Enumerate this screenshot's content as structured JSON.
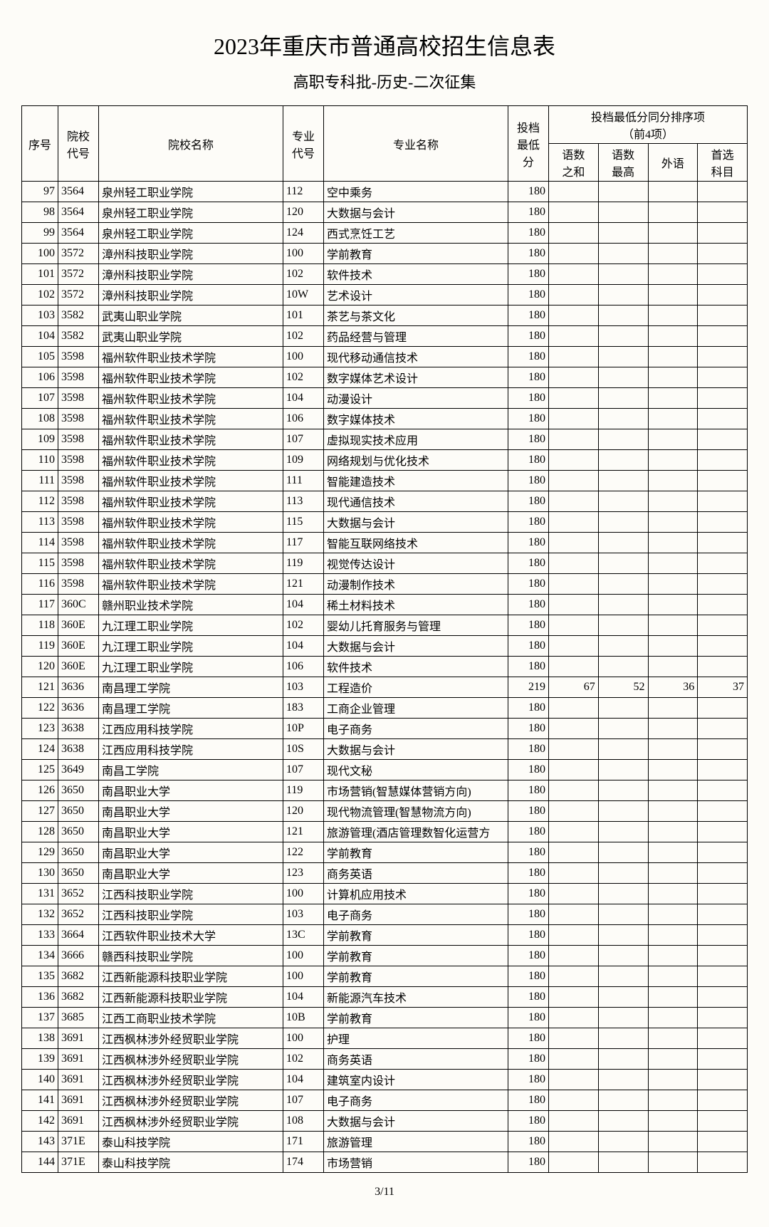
{
  "title": "2023年重庆市普通高校招生信息表",
  "subtitle": "高职专科批-历史-二次征集",
  "pagenum": "3/11",
  "headers": {
    "seq": "序号",
    "school_code": "院校\n代号",
    "school_name": "院校名称",
    "major_code": "专业\n代号",
    "major_name": "专业名称",
    "min_score": "投档\n最低\n分",
    "tiebreak_group": "投档最低分同分排序项\n（前4项）",
    "tb1": "语数\n之和",
    "tb2": "语数\n最高",
    "tb3": "外语",
    "tb4": "首选\n科目"
  },
  "columns_width": {
    "seq": 42,
    "school_code": 48,
    "school": 250,
    "major_code": 48,
    "major": 250,
    "score": 48,
    "sub": 48
  },
  "rows": [
    {
      "seq": 97,
      "sc": "3564",
      "sn": "泉州轻工职业学院",
      "mc": "112",
      "mn": "空中乘务",
      "min": 180,
      "t1": "",
      "t2": "",
      "t3": "",
      "t4": ""
    },
    {
      "seq": 98,
      "sc": "3564",
      "sn": "泉州轻工职业学院",
      "mc": "120",
      "mn": "大数据与会计",
      "min": 180,
      "t1": "",
      "t2": "",
      "t3": "",
      "t4": ""
    },
    {
      "seq": 99,
      "sc": "3564",
      "sn": "泉州轻工职业学院",
      "mc": "124",
      "mn": "西式烹饪工艺",
      "min": 180,
      "t1": "",
      "t2": "",
      "t3": "",
      "t4": ""
    },
    {
      "seq": 100,
      "sc": "3572",
      "sn": "漳州科技职业学院",
      "mc": "100",
      "mn": "学前教育",
      "min": 180,
      "t1": "",
      "t2": "",
      "t3": "",
      "t4": ""
    },
    {
      "seq": 101,
      "sc": "3572",
      "sn": "漳州科技职业学院",
      "mc": "102",
      "mn": "软件技术",
      "min": 180,
      "t1": "",
      "t2": "",
      "t3": "",
      "t4": ""
    },
    {
      "seq": 102,
      "sc": "3572",
      "sn": "漳州科技职业学院",
      "mc": "10W",
      "mn": "艺术设计",
      "min": 180,
      "t1": "",
      "t2": "",
      "t3": "",
      "t4": ""
    },
    {
      "seq": 103,
      "sc": "3582",
      "sn": "武夷山职业学院",
      "mc": "101",
      "mn": "茶艺与茶文化",
      "min": 180,
      "t1": "",
      "t2": "",
      "t3": "",
      "t4": ""
    },
    {
      "seq": 104,
      "sc": "3582",
      "sn": "武夷山职业学院",
      "mc": "102",
      "mn": "药品经营与管理",
      "min": 180,
      "t1": "",
      "t2": "",
      "t3": "",
      "t4": ""
    },
    {
      "seq": 105,
      "sc": "3598",
      "sn": "福州软件职业技术学院",
      "mc": "100",
      "mn": "现代移动通信技术",
      "min": 180,
      "t1": "",
      "t2": "",
      "t3": "",
      "t4": ""
    },
    {
      "seq": 106,
      "sc": "3598",
      "sn": "福州软件职业技术学院",
      "mc": "102",
      "mn": "数字媒体艺术设计",
      "min": 180,
      "t1": "",
      "t2": "",
      "t3": "",
      "t4": ""
    },
    {
      "seq": 107,
      "sc": "3598",
      "sn": "福州软件职业技术学院",
      "mc": "104",
      "mn": "动漫设计",
      "min": 180,
      "t1": "",
      "t2": "",
      "t3": "",
      "t4": ""
    },
    {
      "seq": 108,
      "sc": "3598",
      "sn": "福州软件职业技术学院",
      "mc": "106",
      "mn": "数字媒体技术",
      "min": 180,
      "t1": "",
      "t2": "",
      "t3": "",
      "t4": ""
    },
    {
      "seq": 109,
      "sc": "3598",
      "sn": "福州软件职业技术学院",
      "mc": "107",
      "mn": "虚拟现实技术应用",
      "min": 180,
      "t1": "",
      "t2": "",
      "t3": "",
      "t4": ""
    },
    {
      "seq": 110,
      "sc": "3598",
      "sn": "福州软件职业技术学院",
      "mc": "109",
      "mn": "网络规划与优化技术",
      "min": 180,
      "t1": "",
      "t2": "",
      "t3": "",
      "t4": ""
    },
    {
      "seq": 111,
      "sc": "3598",
      "sn": "福州软件职业技术学院",
      "mc": "111",
      "mn": "智能建造技术",
      "min": 180,
      "t1": "",
      "t2": "",
      "t3": "",
      "t4": ""
    },
    {
      "seq": 112,
      "sc": "3598",
      "sn": "福州软件职业技术学院",
      "mc": "113",
      "mn": "现代通信技术",
      "min": 180,
      "t1": "",
      "t2": "",
      "t3": "",
      "t4": ""
    },
    {
      "seq": 113,
      "sc": "3598",
      "sn": "福州软件职业技术学院",
      "mc": "115",
      "mn": "大数据与会计",
      "min": 180,
      "t1": "",
      "t2": "",
      "t3": "",
      "t4": ""
    },
    {
      "seq": 114,
      "sc": "3598",
      "sn": "福州软件职业技术学院",
      "mc": "117",
      "mn": "智能互联网络技术",
      "min": 180,
      "t1": "",
      "t2": "",
      "t3": "",
      "t4": ""
    },
    {
      "seq": 115,
      "sc": "3598",
      "sn": "福州软件职业技术学院",
      "mc": "119",
      "mn": "视觉传达设计",
      "min": 180,
      "t1": "",
      "t2": "",
      "t3": "",
      "t4": ""
    },
    {
      "seq": 116,
      "sc": "3598",
      "sn": "福州软件职业技术学院",
      "mc": "121",
      "mn": "动漫制作技术",
      "min": 180,
      "t1": "",
      "t2": "",
      "t3": "",
      "t4": ""
    },
    {
      "seq": 117,
      "sc": "360C",
      "sn": "赣州职业技术学院",
      "mc": "104",
      "mn": "稀土材料技术",
      "min": 180,
      "t1": "",
      "t2": "",
      "t3": "",
      "t4": ""
    },
    {
      "seq": 118,
      "sc": "360E",
      "sn": "九江理工职业学院",
      "mc": "102",
      "mn": "婴幼儿托育服务与管理",
      "min": 180,
      "t1": "",
      "t2": "",
      "t3": "",
      "t4": ""
    },
    {
      "seq": 119,
      "sc": "360E",
      "sn": "九江理工职业学院",
      "mc": "104",
      "mn": "大数据与会计",
      "min": 180,
      "t1": "",
      "t2": "",
      "t3": "",
      "t4": ""
    },
    {
      "seq": 120,
      "sc": "360E",
      "sn": "九江理工职业学院",
      "mc": "106",
      "mn": "软件技术",
      "min": 180,
      "t1": "",
      "t2": "",
      "t3": "",
      "t4": ""
    },
    {
      "seq": 121,
      "sc": "3636",
      "sn": "南昌理工学院",
      "mc": "103",
      "mn": "工程造价",
      "min": 219,
      "t1": "67",
      "t2": "52",
      "t3": "36",
      "t4": "37"
    },
    {
      "seq": 122,
      "sc": "3636",
      "sn": "南昌理工学院",
      "mc": "183",
      "mn": "工商企业管理",
      "min": 180,
      "t1": "",
      "t2": "",
      "t3": "",
      "t4": ""
    },
    {
      "seq": 123,
      "sc": "3638",
      "sn": "江西应用科技学院",
      "mc": "10P",
      "mn": "电子商务",
      "min": 180,
      "t1": "",
      "t2": "",
      "t3": "",
      "t4": ""
    },
    {
      "seq": 124,
      "sc": "3638",
      "sn": "江西应用科技学院",
      "mc": "10S",
      "mn": "大数据与会计",
      "min": 180,
      "t1": "",
      "t2": "",
      "t3": "",
      "t4": ""
    },
    {
      "seq": 125,
      "sc": "3649",
      "sn": "南昌工学院",
      "mc": "107",
      "mn": "现代文秘",
      "min": 180,
      "t1": "",
      "t2": "",
      "t3": "",
      "t4": ""
    },
    {
      "seq": 126,
      "sc": "3650",
      "sn": "南昌职业大学",
      "mc": "119",
      "mn": "市场营销(智慧媒体营销方向)",
      "min": 180,
      "t1": "",
      "t2": "",
      "t3": "",
      "t4": ""
    },
    {
      "seq": 127,
      "sc": "3650",
      "sn": "南昌职业大学",
      "mc": "120",
      "mn": "现代物流管理(智慧物流方向)",
      "min": 180,
      "t1": "",
      "t2": "",
      "t3": "",
      "t4": ""
    },
    {
      "seq": 128,
      "sc": "3650",
      "sn": "南昌职业大学",
      "mc": "121",
      "mn": "旅游管理(酒店管理数智化运营方",
      "min": 180,
      "t1": "",
      "t2": "",
      "t3": "",
      "t4": ""
    },
    {
      "seq": 129,
      "sc": "3650",
      "sn": "南昌职业大学",
      "mc": "122",
      "mn": "学前教育",
      "min": 180,
      "t1": "",
      "t2": "",
      "t3": "",
      "t4": ""
    },
    {
      "seq": 130,
      "sc": "3650",
      "sn": "南昌职业大学",
      "mc": "123",
      "mn": "商务英语",
      "min": 180,
      "t1": "",
      "t2": "",
      "t3": "",
      "t4": ""
    },
    {
      "seq": 131,
      "sc": "3652",
      "sn": "江西科技职业学院",
      "mc": "100",
      "mn": "计算机应用技术",
      "min": 180,
      "t1": "",
      "t2": "",
      "t3": "",
      "t4": ""
    },
    {
      "seq": 132,
      "sc": "3652",
      "sn": "江西科技职业学院",
      "mc": "103",
      "mn": "电子商务",
      "min": 180,
      "t1": "",
      "t2": "",
      "t3": "",
      "t4": ""
    },
    {
      "seq": 133,
      "sc": "3664",
      "sn": "江西软件职业技术大学",
      "mc": "13C",
      "mn": "学前教育",
      "min": 180,
      "t1": "",
      "t2": "",
      "t3": "",
      "t4": ""
    },
    {
      "seq": 134,
      "sc": "3666",
      "sn": "赣西科技职业学院",
      "mc": "100",
      "mn": "学前教育",
      "min": 180,
      "t1": "",
      "t2": "",
      "t3": "",
      "t4": ""
    },
    {
      "seq": 135,
      "sc": "3682",
      "sn": "江西新能源科技职业学院",
      "mc": "100",
      "mn": "学前教育",
      "min": 180,
      "t1": "",
      "t2": "",
      "t3": "",
      "t4": ""
    },
    {
      "seq": 136,
      "sc": "3682",
      "sn": "江西新能源科技职业学院",
      "mc": "104",
      "mn": "新能源汽车技术",
      "min": 180,
      "t1": "",
      "t2": "",
      "t3": "",
      "t4": ""
    },
    {
      "seq": 137,
      "sc": "3685",
      "sn": "江西工商职业技术学院",
      "mc": "10B",
      "mn": "学前教育",
      "min": 180,
      "t1": "",
      "t2": "",
      "t3": "",
      "t4": ""
    },
    {
      "seq": 138,
      "sc": "3691",
      "sn": "江西枫林涉外经贸职业学院",
      "mc": "100",
      "mn": "护理",
      "min": 180,
      "t1": "",
      "t2": "",
      "t3": "",
      "t4": ""
    },
    {
      "seq": 139,
      "sc": "3691",
      "sn": "江西枫林涉外经贸职业学院",
      "mc": "102",
      "mn": "商务英语",
      "min": 180,
      "t1": "",
      "t2": "",
      "t3": "",
      "t4": ""
    },
    {
      "seq": 140,
      "sc": "3691",
      "sn": "江西枫林涉外经贸职业学院",
      "mc": "104",
      "mn": "建筑室内设计",
      "min": 180,
      "t1": "",
      "t2": "",
      "t3": "",
      "t4": ""
    },
    {
      "seq": 141,
      "sc": "3691",
      "sn": "江西枫林涉外经贸职业学院",
      "mc": "107",
      "mn": "电子商务",
      "min": 180,
      "t1": "",
      "t2": "",
      "t3": "",
      "t4": ""
    },
    {
      "seq": 142,
      "sc": "3691",
      "sn": "江西枫林涉外经贸职业学院",
      "mc": "108",
      "mn": "大数据与会计",
      "min": 180,
      "t1": "",
      "t2": "",
      "t3": "",
      "t4": ""
    },
    {
      "seq": 143,
      "sc": "371E",
      "sn": "泰山科技学院",
      "mc": "171",
      "mn": "旅游管理",
      "min": 180,
      "t1": "",
      "t2": "",
      "t3": "",
      "t4": ""
    },
    {
      "seq": 144,
      "sc": "371E",
      "sn": "泰山科技学院",
      "mc": "174",
      "mn": "市场营销",
      "min": 180,
      "t1": "",
      "t2": "",
      "t3": "",
      "t4": ""
    }
  ]
}
